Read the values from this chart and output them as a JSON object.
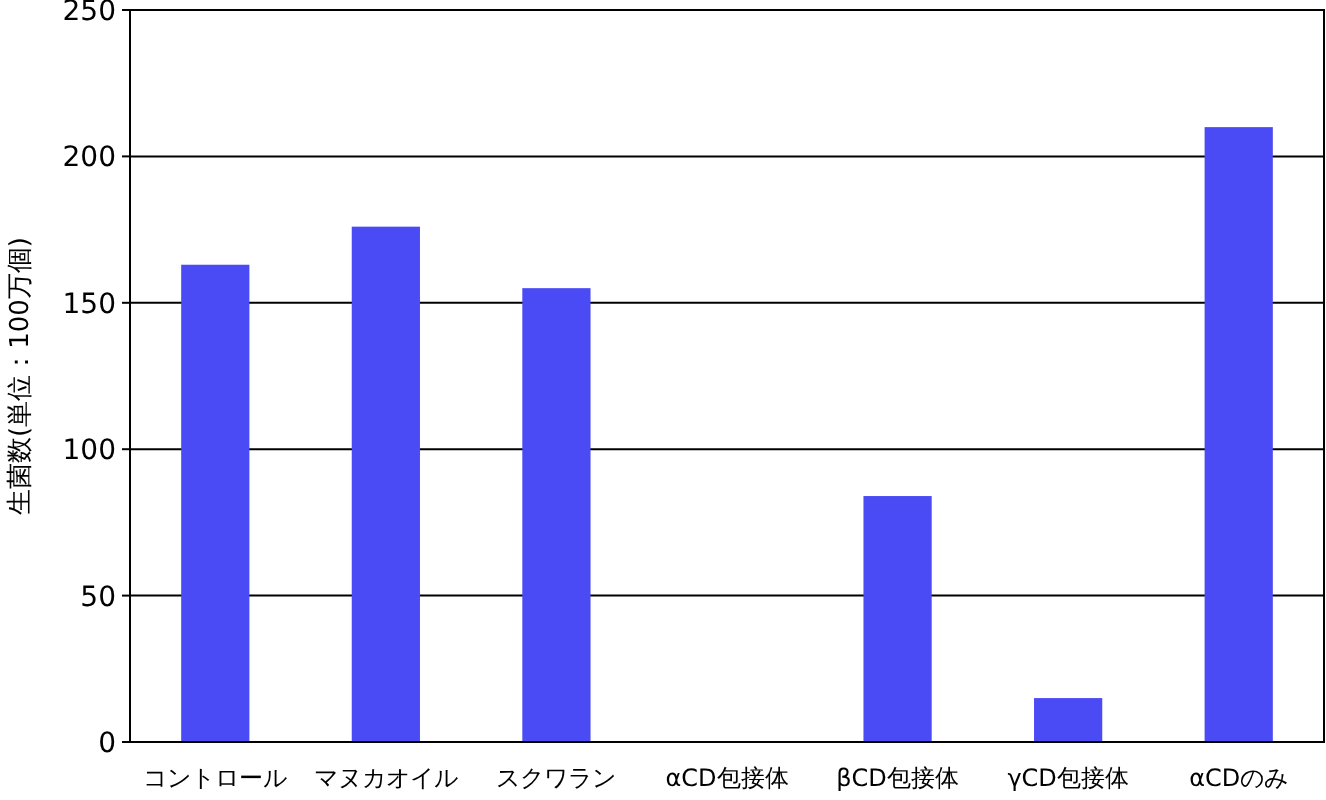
{
  "chart_data": {
    "type": "bar",
    "ylabel": "生菌数(単位：100万個)",
    "categories": [
      "コントロール",
      "マヌカオイル",
      "スクワラン",
      "αCD包接体",
      "βCD包接体",
      "γCD包接体",
      "αCDのみ"
    ],
    "values": [
      163,
      176,
      155,
      0,
      84,
      15,
      210
    ],
    "color": "#4b4bf5",
    "ylim": [
      0,
      250
    ],
    "yticks": [
      0,
      50,
      100,
      150,
      200,
      250
    ],
    "grid": "y"
  }
}
